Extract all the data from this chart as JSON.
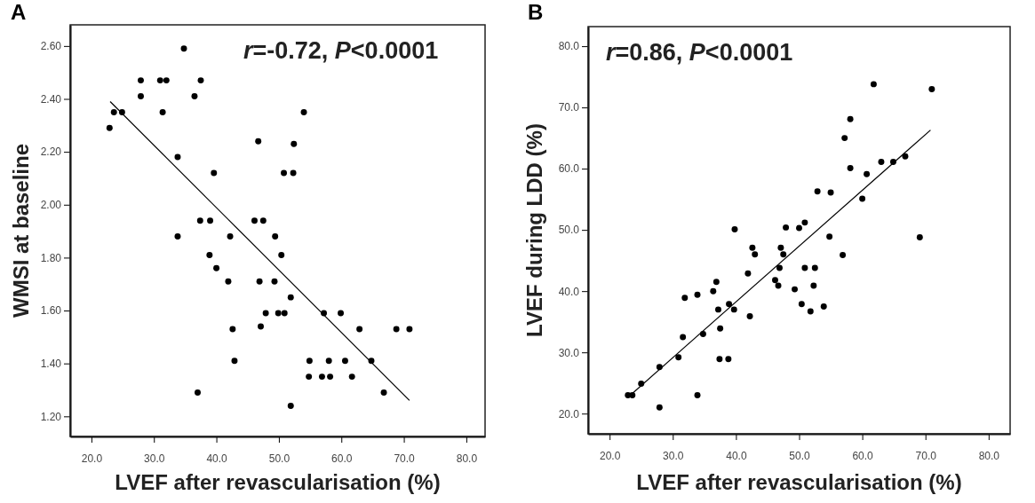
{
  "chart_data": [
    {
      "type": "scatter",
      "title": "A",
      "xlabel": "LVEF after revascularisation (%)",
      "ylabel": "WMSI at baseline",
      "annotations": [
        "r=-0.72, P<0.0001"
      ],
      "xlim": [
        16.6,
        83
      ],
      "ylim": [
        1.124,
        2.68
      ],
      "xticks": [
        {
          "value": 20,
          "label": "20.0"
        },
        {
          "value": 30,
          "label": "30.0"
        },
        {
          "value": 40,
          "label": "40.0"
        },
        {
          "value": 50,
          "label": "50.0"
        },
        {
          "value": 60,
          "label": "60.0"
        },
        {
          "value": 70,
          "label": "70.0"
        },
        {
          "value": 80,
          "label": "80.0"
        }
      ],
      "yticks": [
        {
          "value": 1.2,
          "label": "1.20"
        },
        {
          "value": 1.4,
          "label": "1.40"
        },
        {
          "value": 1.6,
          "label": "1.60"
        },
        {
          "value": 1.8,
          "label": "1.80"
        },
        {
          "value": 2.0,
          "label": "2.00"
        },
        {
          "value": 2.2,
          "label": "2.20"
        },
        {
          "value": 2.4,
          "label": "2.40"
        },
        {
          "value": 2.6,
          "label": "2.60"
        }
      ],
      "grid": false,
      "series": [
        {
          "marker": "circle",
          "color": "#000000",
          "x": [
            22.9,
            23.6,
            24.9,
            27.9,
            27.9,
            31.0,
            32.0,
            31.4,
            34.8,
            36.5,
            37.5,
            33.8,
            39.6,
            37.4,
            39.0,
            33.8,
            42.2,
            54.0,
            46.7,
            52.4,
            50.8,
            52.3,
            46.1,
            47.5,
            49.4,
            38.9,
            50.4,
            40.0,
            41.9,
            46.9,
            49.3,
            51.9,
            47.9,
            49.9,
            50.9,
            57.2,
            59.9,
            47.1,
            42.6,
            62.9,
            68.8,
            70.9,
            42.9,
            54.9,
            58.0,
            60.6,
            64.8,
            54.8,
            56.9,
            58.2,
            61.7,
            37.0,
            66.8,
            51.9
          ],
          "values": [
            2.29,
            2.35,
            2.35,
            2.47,
            2.41,
            2.47,
            2.47,
            2.35,
            2.59,
            2.41,
            2.47,
            2.18,
            2.12,
            1.94,
            1.94,
            1.88,
            1.88,
            2.35,
            2.24,
            2.23,
            2.12,
            2.12,
            1.94,
            1.94,
            1.88,
            1.81,
            1.81,
            1.76,
            1.71,
            1.71,
            1.71,
            1.65,
            1.59,
            1.59,
            1.59,
            1.59,
            1.59,
            1.54,
            1.53,
            1.53,
            1.53,
            1.53,
            1.41,
            1.41,
            1.41,
            1.41,
            1.41,
            1.35,
            1.35,
            1.35,
            1.35,
            1.29,
            1.29,
            1.24
          ]
        },
        {
          "type": "line",
          "color": "#000000",
          "x": [
            23.0,
            70.9
          ],
          "values": [
            2.39,
            1.26
          ]
        }
      ]
    },
    {
      "type": "scatter",
      "title": "B",
      "xlabel": "LVEF after revascularisation (%)",
      "ylabel": "LVEF during LDD (%)",
      "annotations": [
        "r=0.86, P<0.0001"
      ],
      "xlim": [
        16.6,
        83.4
      ],
      "ylim": [
        16.7,
        83.2
      ],
      "xticks": [
        {
          "value": 20,
          "label": "20.0"
        },
        {
          "value": 30,
          "label": "30.0"
        },
        {
          "value": 40,
          "label": "40.0"
        },
        {
          "value": 50,
          "label": "50.0"
        },
        {
          "value": 60,
          "label": "60.0"
        },
        {
          "value": 70,
          "label": "70.0"
        },
        {
          "value": 80,
          "label": "80.0"
        }
      ],
      "yticks": [
        {
          "value": 20,
          "label": "20.0"
        },
        {
          "value": 30,
          "label": "30.0"
        },
        {
          "value": 40,
          "label": "40.0"
        },
        {
          "value": 50,
          "label": "50.0"
        },
        {
          "value": 60,
          "label": "60.0"
        },
        {
          "value": 70,
          "label": "70.0"
        },
        {
          "value": 80,
          "label": "80.0"
        }
      ],
      "grid": false,
      "series": [
        {
          "marker": "circle",
          "color": "#000000",
          "x": [
            22.9,
            23.6,
            25.0,
            27.9,
            27.9,
            30.9,
            31.6,
            31.9,
            33.9,
            33.9,
            34.8,
            36.4,
            36.9,
            37.2,
            37.5,
            37.4,
            38.8,
            38.9,
            39.7,
            42.2,
            41.9,
            46.9,
            46.2,
            46.7,
            39.8,
            42.6,
            43.0,
            47.1,
            47.5,
            47.9,
            50.0,
            50.9,
            49.3,
            50.4,
            50.9,
            52.5,
            52.3,
            51.8,
            53.9,
            52.9,
            55.0,
            54.8,
            56.9,
            57.2,
            58.1,
            58.1,
            60.0,
            60.7,
            63.0,
            64.9,
            66.8,
            61.8,
            71.0,
            69.1
          ],
          "values": [
            23.0,
            23.0,
            24.9,
            27.6,
            21.0,
            29.2,
            32.5,
            38.9,
            39.4,
            23.0,
            33.0,
            40.0,
            41.5,
            37.0,
            33.9,
            28.9,
            28.9,
            37.9,
            37.0,
            35.9,
            42.9,
            43.8,
            41.8,
            40.9,
            50.1,
            47.1,
            46.0,
            47.1,
            46.0,
            50.4,
            50.3,
            51.2,
            40.3,
            37.9,
            43.8,
            43.8,
            40.9,
            36.7,
            37.5,
            56.3,
            56.1,
            48.9,
            45.9,
            65.0,
            68.1,
            60.1,
            55.1,
            59.1,
            61.1,
            61.1,
            62.0,
            73.8,
            73.0,
            48.8
          ]
        },
        {
          "type": "line",
          "color": "#000000",
          "x": [
            23.6,
            70.8
          ],
          "values": [
            23.3,
            66.3
          ]
        }
      ]
    }
  ]
}
